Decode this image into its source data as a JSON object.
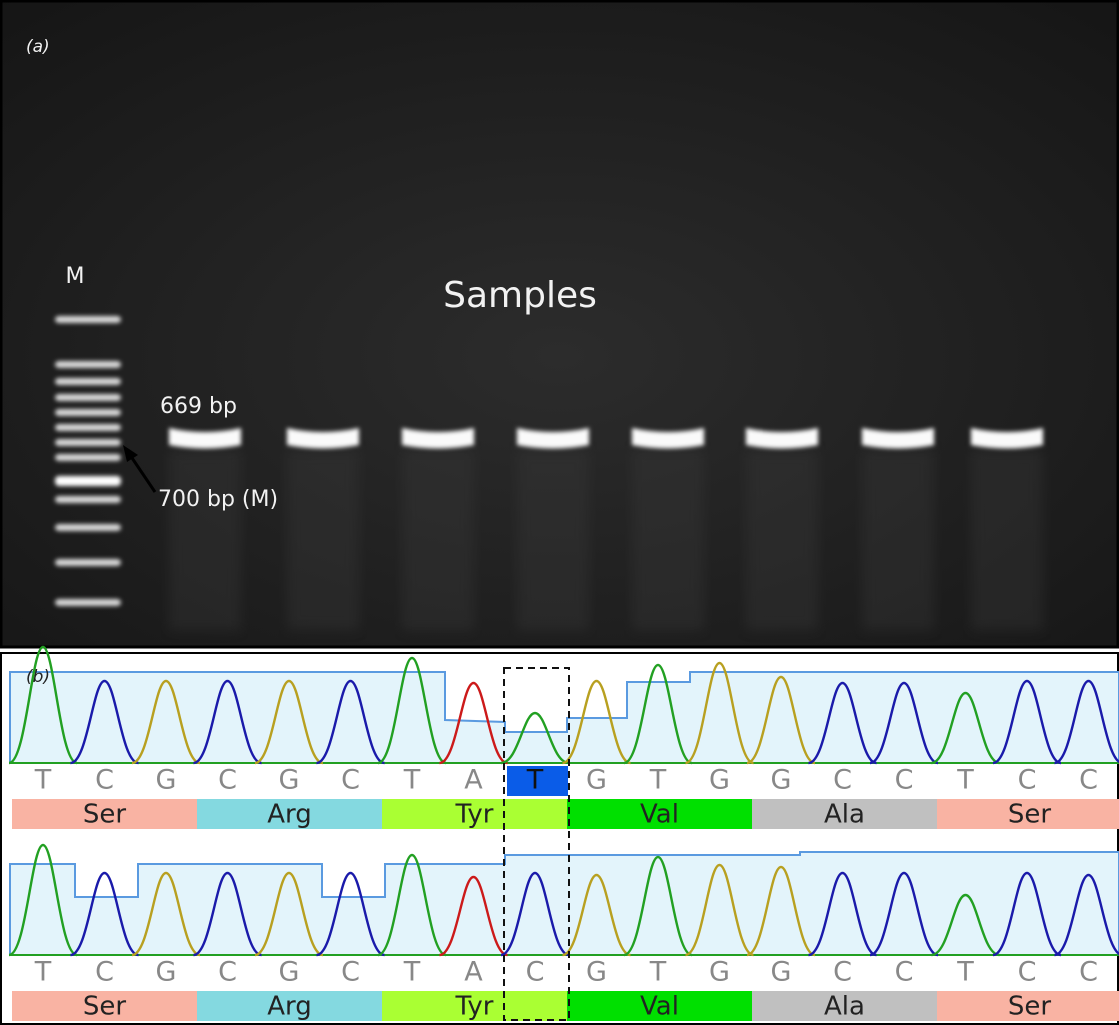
{
  "panel_a": {
    "label": "(a)",
    "marker": "M",
    "samples": "Samples",
    "band_label": "669 bp",
    "marker_label": "700 bp (M)"
  },
  "panel_b": {
    "label": "(b)",
    "tracks": [
      {
        "bases": [
          "T",
          "C",
          "G",
          "C",
          "G",
          "C",
          "T",
          "A",
          "T",
          "G",
          "T",
          "G",
          "G",
          "C",
          "C",
          "T",
          "C",
          "C"
        ],
        "amino_acids": [
          "Ser",
          "Arg",
          "Tyr",
          "Val",
          "Ala",
          "Ser"
        ]
      },
      {
        "bases": [
          "T",
          "C",
          "G",
          "C",
          "G",
          "C",
          "T",
          "A",
          "C",
          "G",
          "T",
          "G",
          "G",
          "C",
          "C",
          "T",
          "C",
          "C"
        ],
        "amino_acids": [
          "Ser",
          "Arg",
          "Tyr",
          "Val",
          "Ala",
          "Ser"
        ]
      }
    ]
  }
}
